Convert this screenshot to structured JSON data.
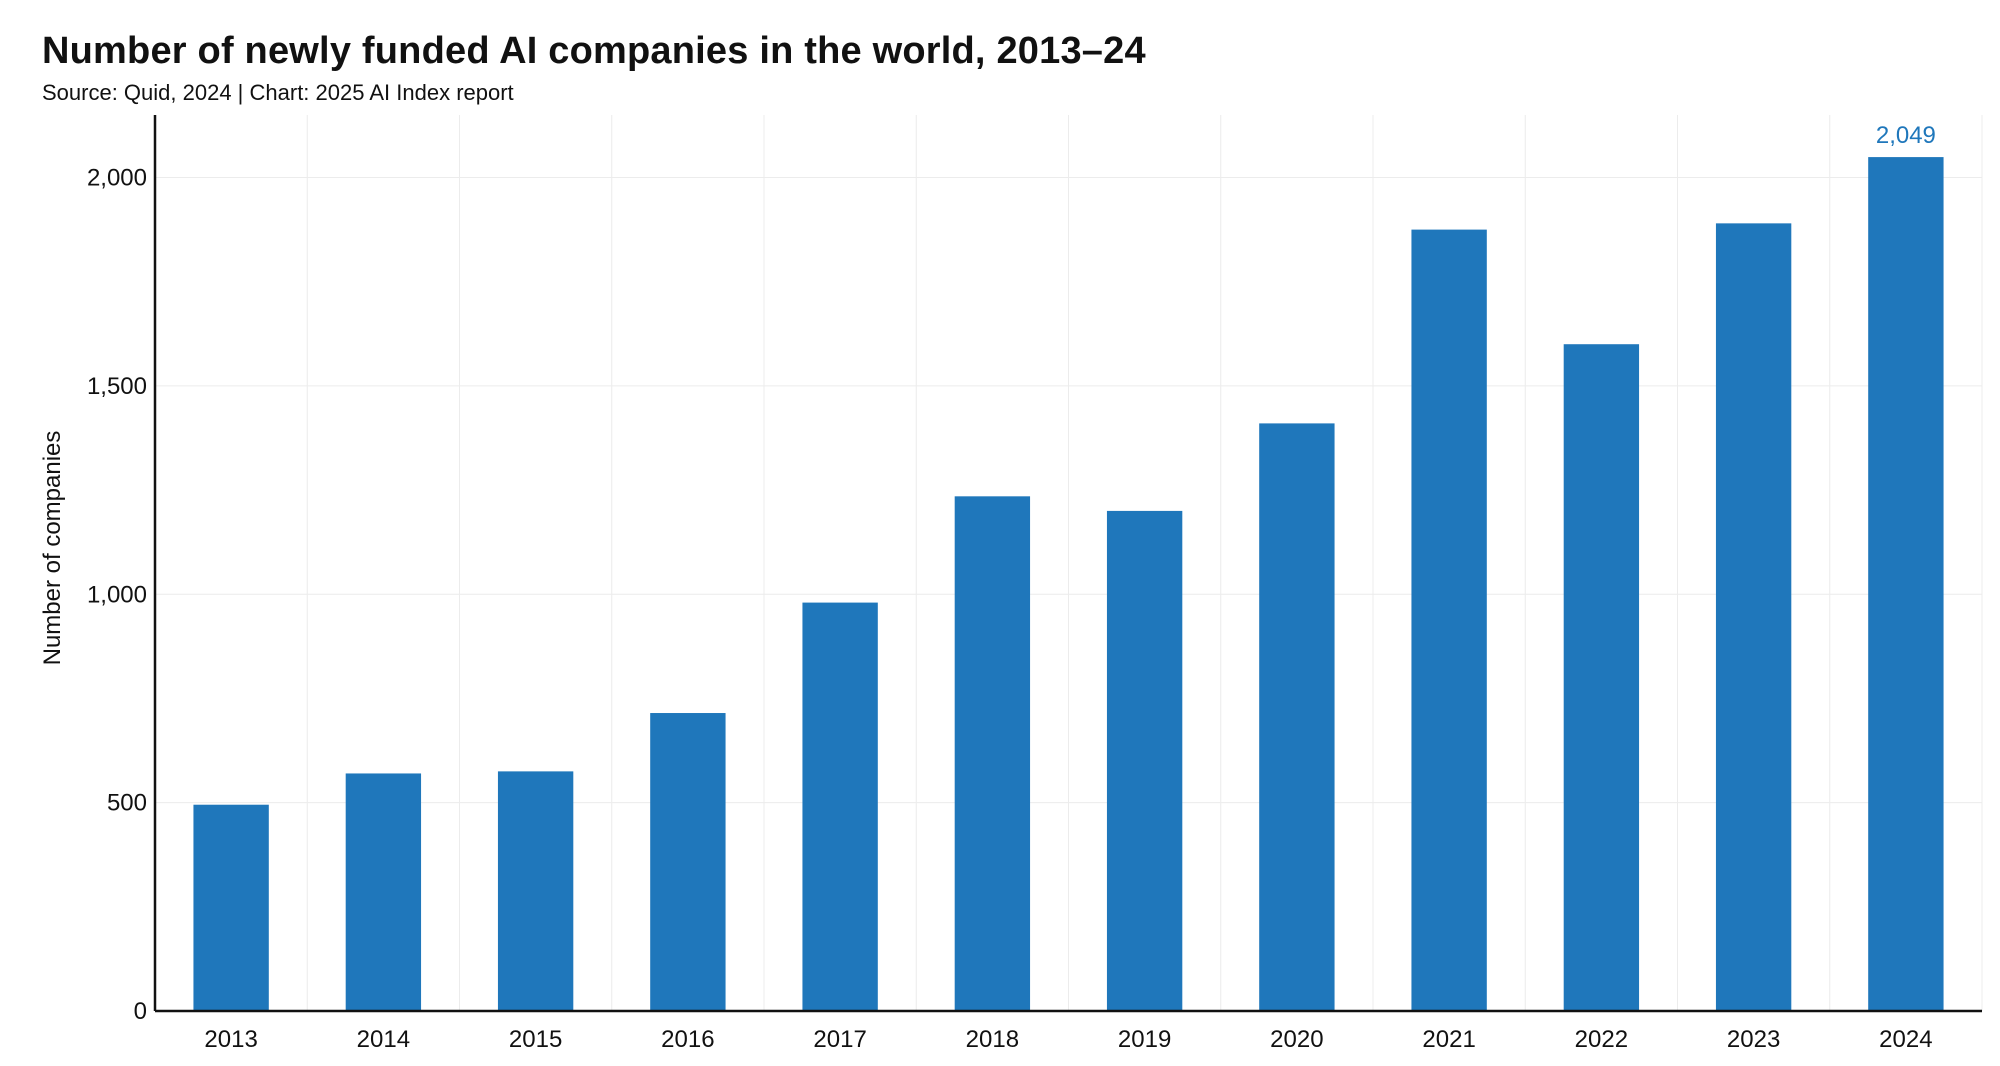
{
  "header": {
    "title": "Number of newly funded AI companies in the world, 2013–24",
    "subtitle": "Source: Quid, 2024 | Chart: 2025 AI Index report"
  },
  "colors": {
    "bar": "#1f77bb",
    "data_label": "#1f77bb",
    "grid": "#ececec",
    "axis": "#111111"
  },
  "chart_data": {
    "type": "bar",
    "title": "Number of newly funded AI companies in the world, 2013–24",
    "subtitle": "Source: Quid, 2024 | Chart: 2025 AI Index report",
    "xlabel": "",
    "ylabel": "Number of companies",
    "categories": [
      "2013",
      "2014",
      "2015",
      "2016",
      "2017",
      "2018",
      "2019",
      "2020",
      "2021",
      "2022",
      "2023",
      "2024"
    ],
    "values": [
      495,
      570,
      575,
      715,
      980,
      1235,
      1200,
      1410,
      1875,
      1600,
      1890,
      2049
    ],
    "ylim": [
      0,
      2150
    ],
    "yticks": [
      0,
      500,
      1000,
      1500,
      2000
    ],
    "ytick_labels": [
      "0",
      "500",
      "1,000",
      "1,500",
      "2,000"
    ],
    "grid": true,
    "data_labels": [
      {
        "category": "2024",
        "text": "2,049"
      }
    ]
  }
}
